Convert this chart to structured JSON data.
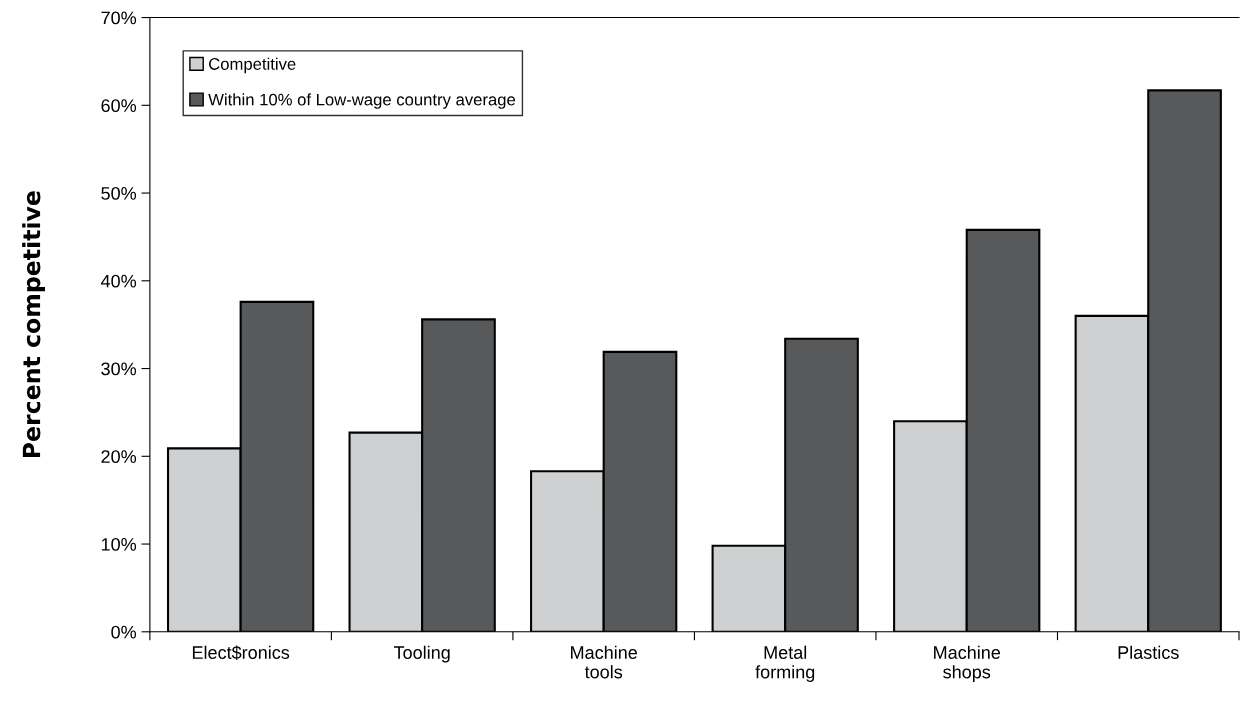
{
  "chart_data": {
    "type": "bar",
    "ylabel": "Percent competitive",
    "categories": [
      "Elect$ronics",
      "Tooling",
      "Machine\ntools",
      "Metal\nforming",
      "Machine\nshops",
      "Plastics"
    ],
    "series": [
      {
        "name": "Competitive",
        "color": "#cfd0d2",
        "values": [
          20.9,
          22.7,
          18.3,
          9.8,
          24.0,
          36.0
        ]
      },
      {
        "name": "Within 10% of Low-wage country average",
        "color": "#58595b",
        "values": [
          37.6,
          35.6,
          31.9,
          33.4,
          45.8,
          61.7
        ]
      }
    ],
    "ylim": [
      0,
      70
    ],
    "yticks": [
      {
        "value": 0,
        "label": "0%"
      },
      {
        "value": 10,
        "label": "10%"
      },
      {
        "value": 20,
        "label": "20%"
      },
      {
        "value": 30,
        "label": "30%"
      },
      {
        "value": 40,
        "label": "40%"
      },
      {
        "value": 50,
        "label": "50%"
      },
      {
        "value": 60,
        "label": "60%"
      },
      {
        "value": 70,
        "label": "70%"
      }
    ],
    "legend": "top left",
    "grid": false
  }
}
